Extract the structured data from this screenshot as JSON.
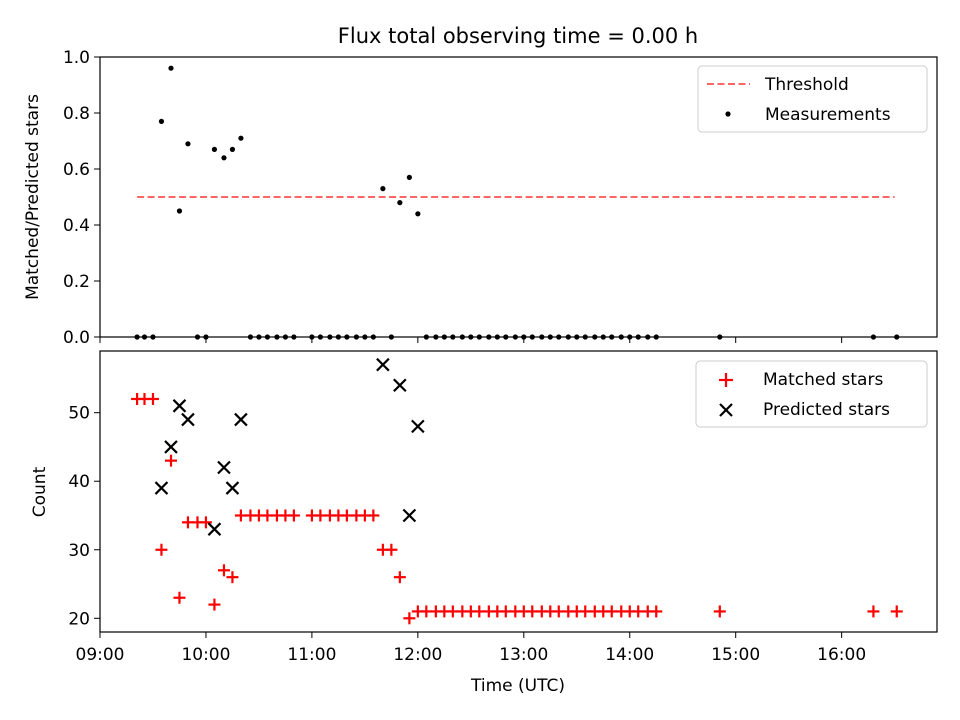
{
  "title": "Flux total observing time = 0.00 h",
  "colors": {
    "threshold": "#ff6666",
    "matched": "#ff0000",
    "predicted": "#000000",
    "measurement": "#000000"
  },
  "chart_data": [
    {
      "type": "scatter",
      "ylabel": "Matched/Predicted stars",
      "xlim": [
        9.0,
        16.9
      ],
      "ylim": [
        0,
        1.0
      ],
      "yticks": [
        0.0,
        0.2,
        0.4,
        0.6,
        0.8,
        1.0
      ],
      "ytick_labels": [
        "0.0",
        "0.2",
        "0.4",
        "0.6",
        "0.8",
        "1.0"
      ],
      "legend_position": "upper right",
      "threshold": {
        "name": "Threshold",
        "style": "dashed",
        "y": 0.5,
        "x_range": [
          9.35,
          16.5
        ]
      },
      "series": [
        {
          "name": "Measurements",
          "marker": "dot",
          "points": [
            [
              9.35,
              0
            ],
            [
              9.42,
              0
            ],
            [
              9.5,
              0
            ],
            [
              9.58,
              0.77
            ],
            [
              9.67,
              0.96
            ],
            [
              9.75,
              0.45
            ],
            [
              9.83,
              0.69
            ],
            [
              9.92,
              0
            ],
            [
              10.0,
              0
            ],
            [
              10.08,
              0.67
            ],
            [
              10.17,
              0.64
            ],
            [
              10.25,
              0.67
            ],
            [
              10.33,
              0.71
            ],
            [
              10.42,
              0
            ],
            [
              10.5,
              0
            ],
            [
              10.58,
              0
            ],
            [
              10.67,
              0
            ],
            [
              10.75,
              0
            ],
            [
              10.83,
              0
            ],
            [
              11.0,
              0
            ],
            [
              11.08,
              0
            ],
            [
              11.17,
              0
            ],
            [
              11.25,
              0
            ],
            [
              11.33,
              0
            ],
            [
              11.42,
              0
            ],
            [
              11.5,
              0
            ],
            [
              11.58,
              0
            ],
            [
              11.67,
              0.53
            ],
            [
              11.75,
              0
            ],
            [
              11.83,
              0.48
            ],
            [
              11.92,
              0.57
            ],
            [
              12.0,
              0.44
            ],
            [
              12.08,
              0
            ],
            [
              12.17,
              0
            ],
            [
              12.25,
              0
            ],
            [
              12.33,
              0
            ],
            [
              12.42,
              0
            ],
            [
              12.5,
              0
            ],
            [
              12.58,
              0
            ],
            [
              12.67,
              0
            ],
            [
              12.75,
              0
            ],
            [
              12.83,
              0
            ],
            [
              12.92,
              0
            ],
            [
              13.0,
              0
            ],
            [
              13.08,
              0
            ],
            [
              13.17,
              0
            ],
            [
              13.25,
              0
            ],
            [
              13.33,
              0
            ],
            [
              13.42,
              0
            ],
            [
              13.5,
              0
            ],
            [
              13.58,
              0
            ],
            [
              13.67,
              0
            ],
            [
              13.75,
              0
            ],
            [
              13.83,
              0
            ],
            [
              13.92,
              0
            ],
            [
              14.0,
              0
            ],
            [
              14.08,
              0
            ],
            [
              14.17,
              0
            ],
            [
              14.25,
              0
            ],
            [
              14.85,
              0
            ],
            [
              16.3,
              0
            ],
            [
              16.52,
              0
            ]
          ]
        }
      ]
    },
    {
      "type": "scatter",
      "xlabel": "Time (UTC)",
      "ylabel": "Count",
      "xlim": [
        9.0,
        16.9
      ],
      "ylim": [
        18,
        59
      ],
      "xticks": [
        9,
        10,
        11,
        12,
        13,
        14,
        15,
        16
      ],
      "xtick_labels": [
        "09:00",
        "10:00",
        "11:00",
        "12:00",
        "13:00",
        "14:00",
        "15:00",
        "16:00"
      ],
      "yticks": [
        20,
        30,
        40,
        50
      ],
      "ytick_labels": [
        "20",
        "30",
        "40",
        "50"
      ],
      "legend_position": "upper right",
      "series": [
        {
          "name": "Matched stars",
          "marker": "plus",
          "points": [
            [
              9.35,
              52
            ],
            [
              9.42,
              52
            ],
            [
              9.5,
              52
            ],
            [
              9.58,
              30
            ],
            [
              9.67,
              43
            ],
            [
              9.75,
              23
            ],
            [
              9.83,
              34
            ],
            [
              9.92,
              34
            ],
            [
              10.0,
              34
            ],
            [
              10.08,
              22
            ],
            [
              10.17,
              27
            ],
            [
              10.25,
              26
            ],
            [
              10.33,
              35
            ],
            [
              10.42,
              35
            ],
            [
              10.5,
              35
            ],
            [
              10.58,
              35
            ],
            [
              10.67,
              35
            ],
            [
              10.75,
              35
            ],
            [
              10.83,
              35
            ],
            [
              11.0,
              35
            ],
            [
              11.08,
              35
            ],
            [
              11.17,
              35
            ],
            [
              11.25,
              35
            ],
            [
              11.33,
              35
            ],
            [
              11.42,
              35
            ],
            [
              11.5,
              35
            ],
            [
              11.58,
              35
            ],
            [
              11.67,
              30
            ],
            [
              11.75,
              30
            ],
            [
              11.83,
              26
            ],
            [
              11.92,
              20
            ],
            [
              12.0,
              21
            ],
            [
              12.08,
              21
            ],
            [
              12.17,
              21
            ],
            [
              12.25,
              21
            ],
            [
              12.33,
              21
            ],
            [
              12.42,
              21
            ],
            [
              12.5,
              21
            ],
            [
              12.58,
              21
            ],
            [
              12.67,
              21
            ],
            [
              12.75,
              21
            ],
            [
              12.83,
              21
            ],
            [
              12.92,
              21
            ],
            [
              13.0,
              21
            ],
            [
              13.08,
              21
            ],
            [
              13.17,
              21
            ],
            [
              13.25,
              21
            ],
            [
              13.33,
              21
            ],
            [
              13.42,
              21
            ],
            [
              13.5,
              21
            ],
            [
              13.58,
              21
            ],
            [
              13.67,
              21
            ],
            [
              13.75,
              21
            ],
            [
              13.83,
              21
            ],
            [
              13.92,
              21
            ],
            [
              14.0,
              21
            ],
            [
              14.08,
              21
            ],
            [
              14.17,
              21
            ],
            [
              14.25,
              21
            ],
            [
              14.85,
              21
            ],
            [
              16.3,
              21
            ],
            [
              16.52,
              21
            ]
          ]
        },
        {
          "name": "Predicted stars",
          "marker": "x",
          "points": [
            [
              9.58,
              39
            ],
            [
              9.67,
              45
            ],
            [
              9.75,
              51
            ],
            [
              9.83,
              49
            ],
            [
              10.08,
              33
            ],
            [
              10.17,
              42
            ],
            [
              10.25,
              39
            ],
            [
              10.33,
              49
            ],
            [
              11.67,
              57
            ],
            [
              11.83,
              54
            ],
            [
              11.92,
              35
            ],
            [
              12.0,
              48
            ]
          ]
        }
      ]
    }
  ]
}
